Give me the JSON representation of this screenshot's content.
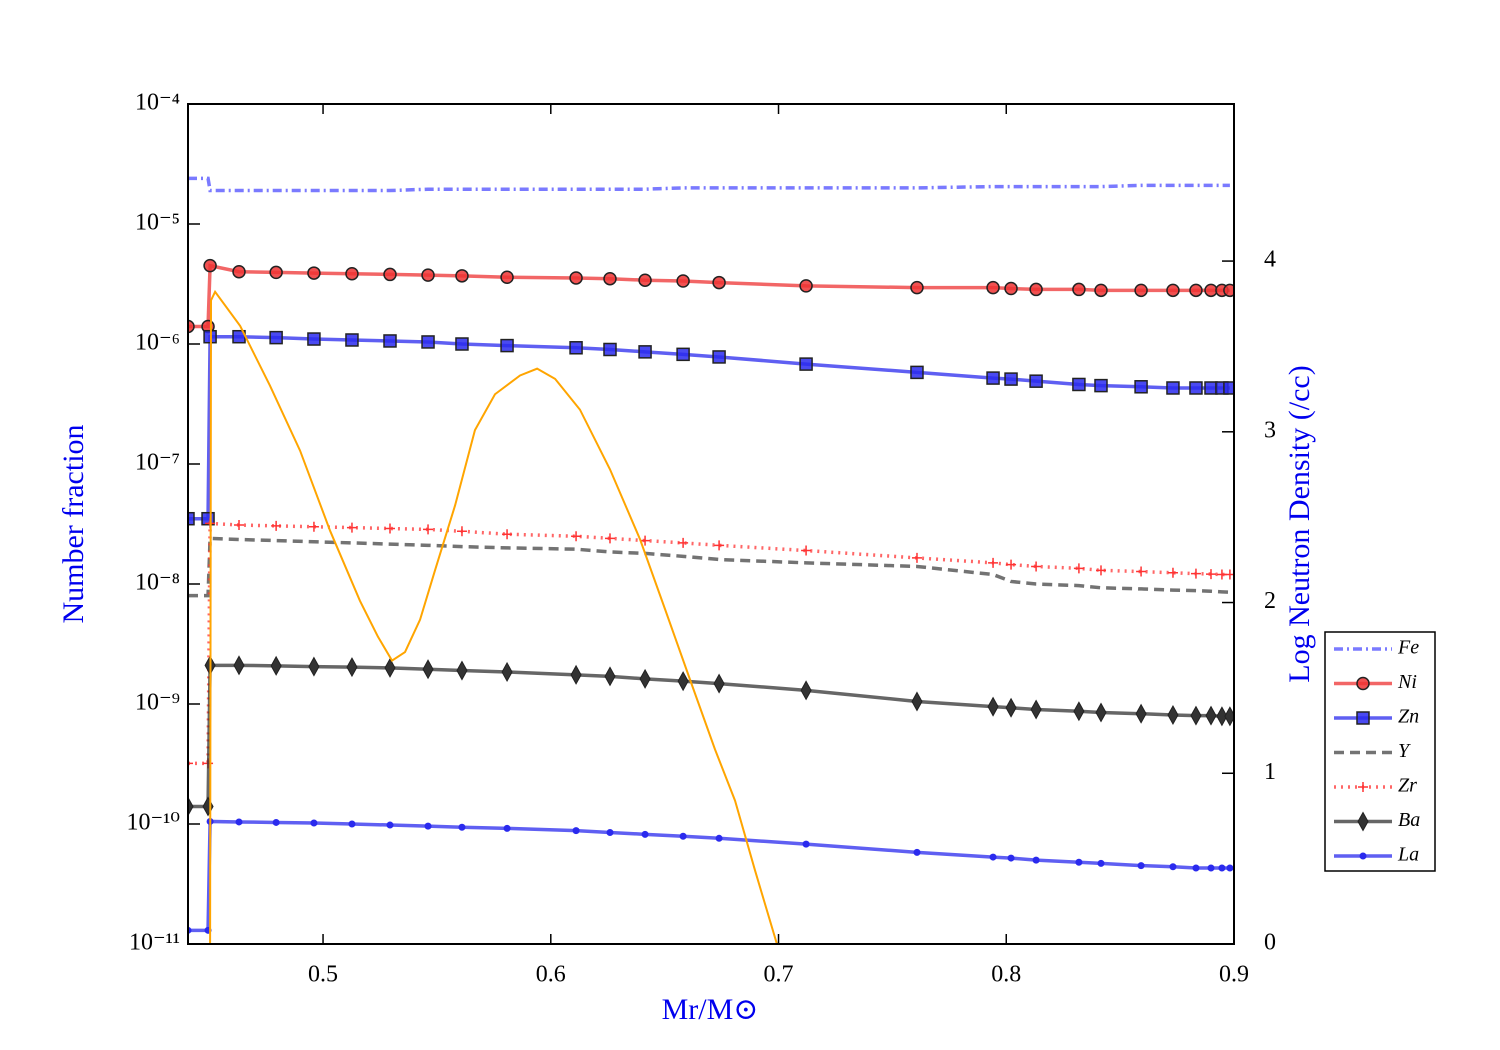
{
  "chart_data": {
    "type": "line",
    "xlabel": "Mr/M⊙",
    "ylabel": "Number fraction",
    "y2label": "Log Neutron Density (/cc)",
    "yscale": "log",
    "legend": "outside right",
    "xlim": [
      0.4407,
      0.9
    ],
    "xticks": [
      0.5,
      0.6,
      0.7,
      0.8,
      0.9
    ],
    "ylim": [
      1e-11,
      0.0001
    ],
    "yticks": [
      {
        "value": 1e-11,
        "label": "10⁻¹¹"
      },
      {
        "value": 1e-10,
        "label": "10⁻¹⁰"
      },
      {
        "value": 1e-09,
        "label": "10⁻⁹"
      },
      {
        "value": 1e-08,
        "label": "10⁻⁸"
      },
      {
        "value": 1e-07,
        "label": "10⁻⁷"
      },
      {
        "value": 1e-06,
        "label": "10⁻⁶"
      },
      {
        "value": 1e-05,
        "label": "10⁻⁵"
      },
      {
        "value": 0.0001,
        "label": "10⁻⁴"
      }
    ],
    "y2lim": [
      0,
      4.92
    ],
    "y2ticks": [
      0,
      1,
      2,
      3,
      4
    ],
    "x": [
      0.4407,
      0.4495,
      0.4504,
      0.4631,
      0.4794,
      0.496,
      0.5127,
      0.5294,
      0.5461,
      0.561,
      0.5808,
      0.6111,
      0.626,
      0.6414,
      0.6581,
      0.6739,
      0.7121,
      0.7608,
      0.7942,
      0.8021,
      0.8131,
      0.8319,
      0.8416,
      0.8592,
      0.8732,
      0.8833,
      0.8899,
      0.8947,
      0.8982
    ],
    "series": [
      {
        "name": "Fe",
        "color": "#4d4dff",
        "linestyle": "dashdot",
        "marker": "none",
        "values": [
          2.4e-05,
          2.4e-05,
          1.9e-05,
          1.9e-05,
          1.9e-05,
          1.9e-05,
          1.9e-05,
          1.9e-05,
          1.95e-05,
          1.95e-05,
          1.95e-05,
          1.95e-05,
          1.95e-05,
          1.95e-05,
          2e-05,
          2e-05,
          2e-05,
          2e-05,
          2.05e-05,
          2.05e-05,
          2.05e-05,
          2.05e-05,
          2.05e-05,
          2.1e-05,
          2.1e-05,
          2.1e-05,
          2.1e-05,
          2.1e-05,
          2.1e-05
        ]
      },
      {
        "name": "Ni",
        "color": "#ee3333",
        "linestyle": "solid",
        "marker": "circle",
        "values": [
          1.4e-06,
          1.4e-06,
          4.5e-06,
          4e-06,
          3.95e-06,
          3.9e-06,
          3.85e-06,
          3.8e-06,
          3.75e-06,
          3.7e-06,
          3.6e-06,
          3.55e-06,
          3.5e-06,
          3.4e-06,
          3.35e-06,
          3.25e-06,
          3.05e-06,
          2.95e-06,
          2.95e-06,
          2.9e-06,
          2.85e-06,
          2.85e-06,
          2.8e-06,
          2.8e-06,
          2.8e-06,
          2.8e-06,
          2.8e-06,
          2.8e-06,
          2.8e-06
        ]
      },
      {
        "name": "Zn",
        "color": "#2a2aee",
        "linestyle": "solid",
        "marker": "square",
        "values": [
          3.5e-08,
          3.5e-08,
          1.15e-06,
          1.15e-06,
          1.13e-06,
          1.1e-06,
          1.08e-06,
          1.06e-06,
          1.04e-06,
          1e-06,
          9.7e-07,
          9.3e-07,
          9e-07,
          8.6e-07,
          8.2e-07,
          7.8e-07,
          6.8e-07,
          5.8e-07,
          5.2e-07,
          5.1e-07,
          4.9e-07,
          4.6e-07,
          4.5e-07,
          4.4e-07,
          4.3e-07,
          4.3e-07,
          4.3e-07,
          4.3e-07,
          4.3e-07
        ]
      },
      {
        "name": "Y",
        "color": "#444444",
        "linestyle": "dashed",
        "marker": "none",
        "values": [
          8e-09,
          8e-09,
          2.4e-08,
          2.35e-08,
          2.3e-08,
          2.25e-08,
          2.2e-08,
          2.15e-08,
          2.1e-08,
          2.05e-08,
          2e-08,
          1.95e-08,
          1.85e-08,
          1.8e-08,
          1.7e-08,
          1.6e-08,
          1.5e-08,
          1.4e-08,
          1.2e-08,
          1.05e-08,
          1e-08,
          9.7e-09,
          9.3e-09,
          9.1e-09,
          8.9e-09,
          8.8e-09,
          8.7e-09,
          8.6e-09,
          8.55e-09
        ]
      },
      {
        "name": "Zr",
        "color": "#ff3333",
        "linestyle": "dotted",
        "marker": "plus",
        "values": [
          3.2e-10,
          3.2e-10,
          3.2e-08,
          3.1e-08,
          3.05e-08,
          3e-08,
          2.95e-08,
          2.9e-08,
          2.85e-08,
          2.75e-08,
          2.6e-08,
          2.5e-08,
          2.4e-08,
          2.3e-08,
          2.2e-08,
          2.1e-08,
          1.9e-08,
          1.65e-08,
          1.5e-08,
          1.45e-08,
          1.4e-08,
          1.35e-08,
          1.3e-08,
          1.27e-08,
          1.24e-08,
          1.22e-08,
          1.21e-08,
          1.2e-08,
          1.2e-08
        ]
      },
      {
        "name": "Ba",
        "color": "#333333",
        "linestyle": "solid",
        "marker": "diamond",
        "values": [
          1.4e-10,
          1.4e-10,
          2.1e-09,
          2.1e-09,
          2.08e-09,
          2.05e-09,
          2.03e-09,
          2e-09,
          1.95e-09,
          1.9e-09,
          1.85e-09,
          1.75e-09,
          1.7e-09,
          1.62e-09,
          1.55e-09,
          1.48e-09,
          1.3e-09,
          1.05e-09,
          9.5e-10,
          9.3e-10,
          9e-10,
          8.7e-10,
          8.5e-10,
          8.3e-10,
          8.1e-10,
          8e-10,
          8e-10,
          7.9e-10,
          7.9e-10
        ]
      },
      {
        "name": "La",
        "color": "#2a2aee",
        "linestyle": "solid",
        "marker": "dot",
        "values": [
          1.3e-11,
          1.3e-11,
          1.05e-10,
          1.04e-10,
          1.03e-10,
          1.02e-10,
          1e-10,
          9.8e-11,
          9.6e-11,
          9.4e-11,
          9.2e-11,
          8.8e-11,
          8.5e-11,
          8.2e-11,
          7.9e-11,
          7.6e-11,
          6.8e-11,
          5.8e-11,
          5.3e-11,
          5.2e-11,
          5e-11,
          4.8e-11,
          4.7e-11,
          4.5e-11,
          4.4e-11,
          4.3e-11,
          4.3e-11,
          4.3e-11,
          4.3e-11
        ]
      },
      {
        "color": "#ffa500",
        "linestyle": "solid",
        "marker": "none",
        "axis": "y2",
        "x": [
          0.4504,
          0.4508,
          0.4526,
          0.4636,
          0.4767,
          0.4899,
          0.5031,
          0.5162,
          0.5241,
          0.5303,
          0.536,
          0.5426,
          0.5492,
          0.558,
          0.5667,
          0.5755,
          0.5865,
          0.594,
          0.6019,
          0.6128,
          0.626,
          0.6392,
          0.6502,
          0.6611,
          0.6721,
          0.6809,
          0.6897,
          0.6993
        ],
        "values": [
          0,
          3.77,
          3.82,
          3.62,
          3.27,
          2.89,
          2.42,
          2.01,
          1.8,
          1.66,
          1.71,
          1.9,
          2.19,
          2.57,
          3.01,
          3.22,
          3.33,
          3.37,
          3.31,
          3.13,
          2.78,
          2.37,
          1.96,
          1.55,
          1.14,
          0.84,
          0.43,
          0
        ]
      }
    ]
  }
}
